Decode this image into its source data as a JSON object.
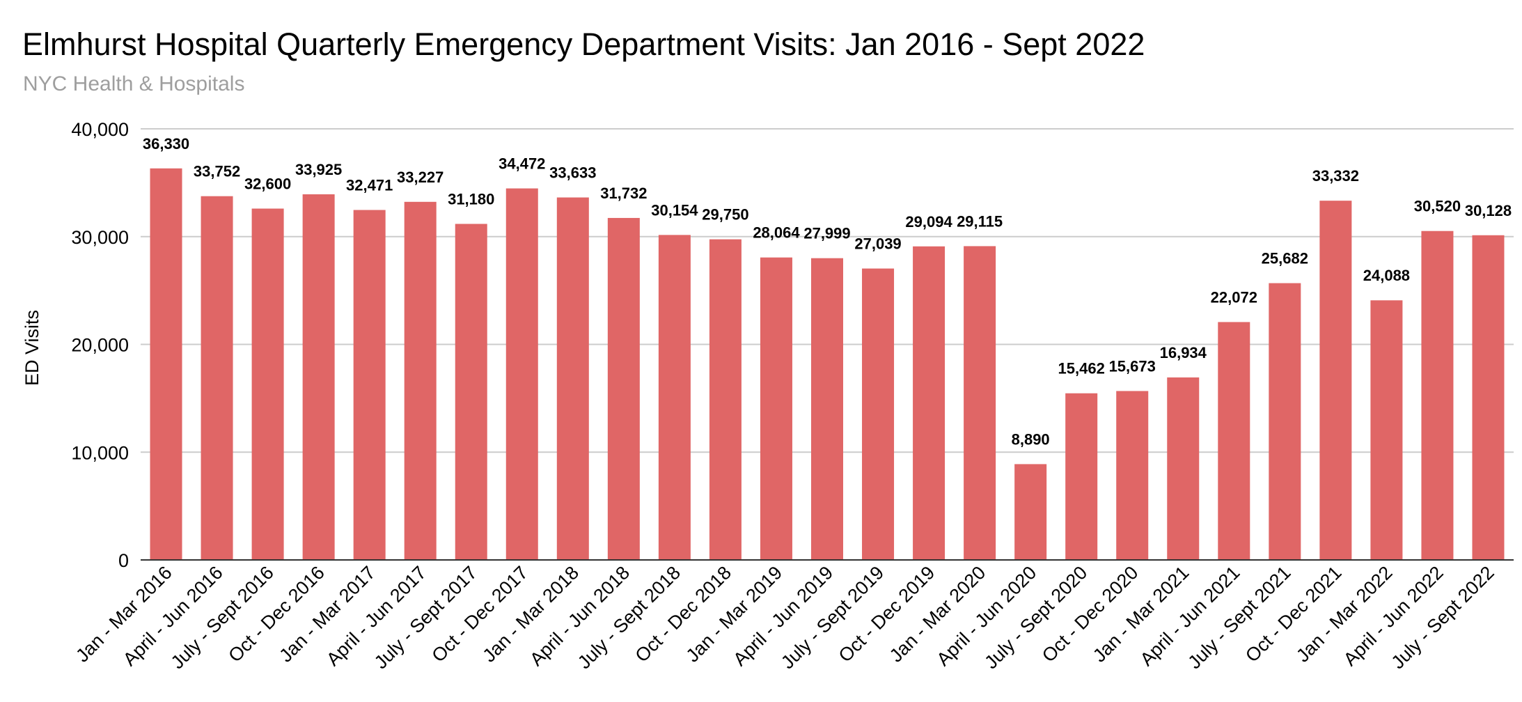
{
  "chart_data": {
    "type": "bar",
    "title": "Elmhurst Hospital Quarterly Emergency Department Visits: Jan 2016 - Sept 2022",
    "subtitle": "NYC Health & Hospitals",
    "xlabel": "",
    "ylabel": "ED Visits",
    "ylim": [
      0,
      40000
    ],
    "yticks": [
      0,
      10000,
      20000,
      30000,
      40000
    ],
    "ytick_labels": [
      "0",
      "10,000",
      "20,000",
      "30,000",
      "40,000"
    ],
    "grid": true,
    "bar_color": "#e06666",
    "categories": [
      "Jan - Mar 2016",
      "April - Jun 2016",
      "July - Sept 2016",
      "Oct - Dec 2016",
      "Jan - Mar 2017",
      "April - Jun 2017",
      "July - Sept 2017",
      "Oct - Dec 2017",
      "Jan - Mar 2018",
      "April - Jun 2018",
      "July - Sept 2018",
      "Oct - Dec 2018",
      "Jan - Mar 2019",
      "April - Jun 2019",
      "July - Sept 2019",
      "Oct - Dec 2019",
      "Jan - Mar 2020",
      "April - Jun 2020",
      "July - Sept 2020",
      "Oct - Dec 2020",
      "Jan - Mar 2021",
      "April - Jun 2021",
      "July - Sept 2021",
      "Oct - Dec 2021",
      "Jan - Mar 2022",
      "April - Jun 2022",
      "July - Sept 2022"
    ],
    "values": [
      36330,
      33752,
      32600,
      33925,
      32471,
      33227,
      31180,
      34472,
      33633,
      31732,
      30154,
      29750,
      28064,
      27999,
      27039,
      29094,
      29115,
      8890,
      15462,
      15673,
      16934,
      22072,
      25682,
      33332,
      24088,
      30520,
      30128
    ],
    "value_labels": [
      "36,330",
      "33,752",
      "32,600",
      "33,925",
      "32,471",
      "33,227",
      "31,180",
      "34,472",
      "33,633",
      "31,732",
      "30,154",
      "29,750",
      "28,064",
      "27,999",
      "27,039",
      "29,094",
      "29,115",
      "8,890",
      "15,462",
      "15,673",
      "16,934",
      "22,072",
      "25,682",
      "33,332",
      "24,088",
      "30,520",
      "30,128"
    ]
  }
}
